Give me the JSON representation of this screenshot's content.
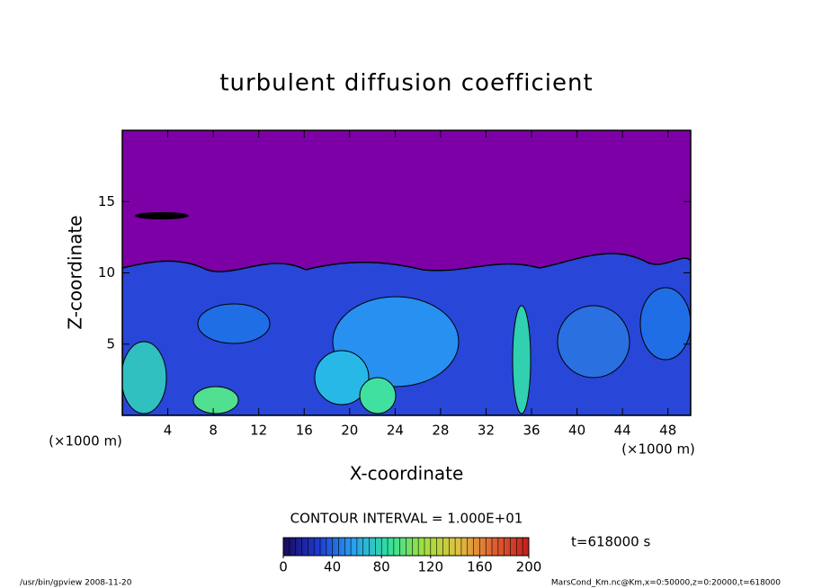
{
  "chart_data": {
    "type": "contour",
    "title": "turbulent diffusion coefficient",
    "x_label": "X-coordinate",
    "y_label": "Z-coordinate",
    "x_unit_left": "(×1000 m)",
    "x_unit_right": "(×1000 m)",
    "xlim": [
      0,
      50
    ],
    "xticks": [
      4,
      8,
      12,
      16,
      20,
      24,
      28,
      32,
      36,
      40,
      44,
      48
    ],
    "ylim": [
      0,
      20
    ],
    "yticks": [
      5,
      10,
      15
    ],
    "contour_interval": "CONTOUR INTERVAL = 1.000E+01",
    "colorbar": {
      "lim": [
        0,
        200
      ],
      "ticks": [
        0,
        40,
        80,
        120,
        160,
        200
      ],
      "colors": [
        "#1a0a5a",
        "#1e3ad0",
        "#2aa0f0",
        "#30e0a0",
        "#a0e040",
        "#e0c040",
        "#e06030",
        "#c02020"
      ]
    },
    "time_label": "t=618000 s",
    "footer_left": "/usr/bin/gpview   2008-11-20",
    "footer_right": "MarsCond_Km.nc@Km,x=0:50000,z=0:20000,t=618000"
  }
}
